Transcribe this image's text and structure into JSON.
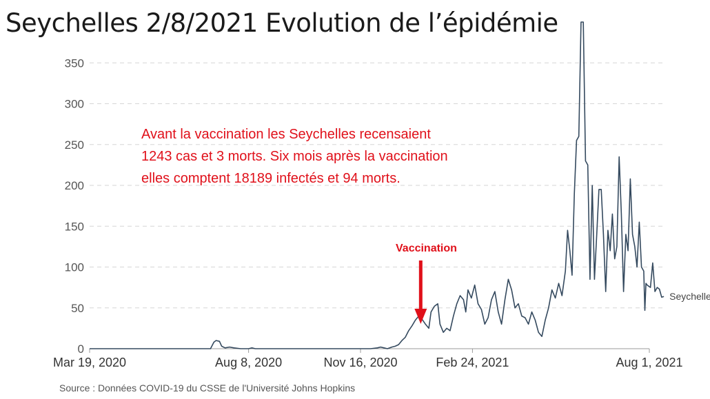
{
  "title": "Seychelles 2/8/2021 Evolution de l’épidémie",
  "annotation": {
    "lines": [
      "Avant la vaccination les Seychelles recensaient",
      "1243 cas  et 3 morts. Six mois après la vaccination",
      "elles comptent 18189 infectés et 94 morts."
    ],
    "vaccination_label": "Vaccination",
    "vaccination_date": "Jan 10, 2021",
    "color": "#e0101a"
  },
  "source": "Source : Données COVID-19 du CSSE de l'Université Johns Hopkins",
  "chart_data": {
    "type": "line",
    "title": "Seychelles 2/8/2021 Evolution de l’épidémie",
    "xlabel": "",
    "ylabel": "",
    "x_range": [
      "Mar 19, 2020",
      "Aug 1, 2021"
    ],
    "x_ticks": [
      "Mar 19, 2020",
      "Aug 8, 2020",
      "Nov 16, 2020",
      "Feb 24, 2021",
      "Aug 1, 2021"
    ],
    "y_ticks": [
      0,
      50,
      100,
      150,
      200,
      250,
      300,
      350
    ],
    "ylim": [
      0,
      400
    ],
    "grid": "horizontal dashed",
    "series": [
      {
        "name": "Seychelles",
        "color": "#34495e",
        "points": [
          [
            "2020-03-19",
            0
          ],
          [
            "2020-07-05",
            0
          ],
          [
            "2020-07-08",
            8
          ],
          [
            "2020-07-10",
            10
          ],
          [
            "2020-07-13",
            9
          ],
          [
            "2020-07-15",
            3
          ],
          [
            "2020-07-18",
            1
          ],
          [
            "2020-07-22",
            2
          ],
          [
            "2020-07-26",
            1
          ],
          [
            "2020-08-01",
            0
          ],
          [
            "2020-08-08",
            0
          ],
          [
            "2020-08-11",
            1
          ],
          [
            "2020-08-14",
            0
          ],
          [
            "2020-11-25",
            0
          ],
          [
            "2020-12-01",
            1
          ],
          [
            "2020-12-04",
            2
          ],
          [
            "2020-12-07",
            1
          ],
          [
            "2020-12-10",
            0
          ],
          [
            "2020-12-14",
            2
          ],
          [
            "2020-12-17",
            3
          ],
          [
            "2020-12-20",
            5
          ],
          [
            "2020-12-23",
            10
          ],
          [
            "2020-12-26",
            14
          ],
          [
            "2020-12-29",
            22
          ],
          [
            "2021-01-01",
            28
          ],
          [
            "2021-01-04",
            35
          ],
          [
            "2021-01-07",
            40
          ],
          [
            "2021-01-10",
            36
          ],
          [
            "2021-01-13",
            30
          ],
          [
            "2021-01-16",
            25
          ],
          [
            "2021-01-18",
            45
          ],
          [
            "2021-01-21",
            52
          ],
          [
            "2021-01-24",
            55
          ],
          [
            "2021-01-26",
            30
          ],
          [
            "2021-01-29",
            20
          ],
          [
            "2021-02-01",
            25
          ],
          [
            "2021-02-04",
            22
          ],
          [
            "2021-02-07",
            40
          ],
          [
            "2021-02-10",
            55
          ],
          [
            "2021-02-13",
            65
          ],
          [
            "2021-02-16",
            60
          ],
          [
            "2021-02-18",
            45
          ],
          [
            "2021-02-20",
            72
          ],
          [
            "2021-02-23",
            62
          ],
          [
            "2021-02-26",
            78
          ],
          [
            "2021-03-01",
            55
          ],
          [
            "2021-03-04",
            48
          ],
          [
            "2021-03-07",
            30
          ],
          [
            "2021-03-10",
            38
          ],
          [
            "2021-03-13",
            60
          ],
          [
            "2021-03-16",
            70
          ],
          [
            "2021-03-19",
            45
          ],
          [
            "2021-03-22",
            30
          ],
          [
            "2021-03-25",
            60
          ],
          [
            "2021-03-28",
            85
          ],
          [
            "2021-03-31",
            72
          ],
          [
            "2021-04-03",
            50
          ],
          [
            "2021-04-06",
            55
          ],
          [
            "2021-04-09",
            40
          ],
          [
            "2021-04-12",
            38
          ],
          [
            "2021-04-15",
            30
          ],
          [
            "2021-04-18",
            45
          ],
          [
            "2021-04-21",
            35
          ],
          [
            "2021-04-24",
            20
          ],
          [
            "2021-04-27",
            15
          ],
          [
            "2021-04-30",
            35
          ],
          [
            "2021-05-03",
            50
          ],
          [
            "2021-05-06",
            72
          ],
          [
            "2021-05-09",
            62
          ],
          [
            "2021-05-12",
            80
          ],
          [
            "2021-05-15",
            65
          ],
          [
            "2021-05-18",
            95
          ],
          [
            "2021-05-20",
            145
          ],
          [
            "2021-05-22",
            120
          ],
          [
            "2021-05-24",
            90
          ],
          [
            "2021-05-26",
            190
          ],
          [
            "2021-05-28",
            255
          ],
          [
            "2021-05-30",
            260
          ],
          [
            "2021-06-01",
            400
          ],
          [
            "2021-06-03",
            400
          ],
          [
            "2021-06-05",
            230
          ],
          [
            "2021-06-07",
            225
          ],
          [
            "2021-06-09",
            85
          ],
          [
            "2021-06-11",
            200
          ],
          [
            "2021-06-13",
            85
          ],
          [
            "2021-06-15",
            140
          ],
          [
            "2021-06-17",
            195
          ],
          [
            "2021-06-19",
            195
          ],
          [
            "2021-06-21",
            140
          ],
          [
            "2021-06-23",
            70
          ],
          [
            "2021-06-25",
            145
          ],
          [
            "2021-06-27",
            120
          ],
          [
            "2021-06-29",
            165
          ],
          [
            "2021-07-01",
            110
          ],
          [
            "2021-07-03",
            125
          ],
          [
            "2021-07-05",
            235
          ],
          [
            "2021-07-07",
            165
          ],
          [
            "2021-07-09",
            70
          ],
          [
            "2021-07-11",
            140
          ],
          [
            "2021-07-13",
            120
          ],
          [
            "2021-07-15",
            208
          ],
          [
            "2021-07-17",
            140
          ],
          [
            "2021-07-19",
            125
          ],
          [
            "2021-07-21",
            100
          ],
          [
            "2021-07-23",
            155
          ],
          [
            "2021-07-25",
            100
          ],
          [
            "2021-07-27",
            95
          ],
          [
            "2021-07-28",
            47
          ],
          [
            "2021-07-29",
            80
          ],
          [
            "2021-07-30",
            78
          ],
          [
            "2021-07-31",
            77
          ],
          [
            "2021-08-02",
            75
          ],
          [
            "2021-08-04",
            105
          ],
          [
            "2021-08-06",
            70
          ],
          [
            "2021-08-08",
            75
          ],
          [
            "2021-08-10",
            73
          ],
          [
            "2021-08-12",
            63
          ],
          [
            "2021-08-14",
            64
          ]
        ]
      }
    ]
  }
}
